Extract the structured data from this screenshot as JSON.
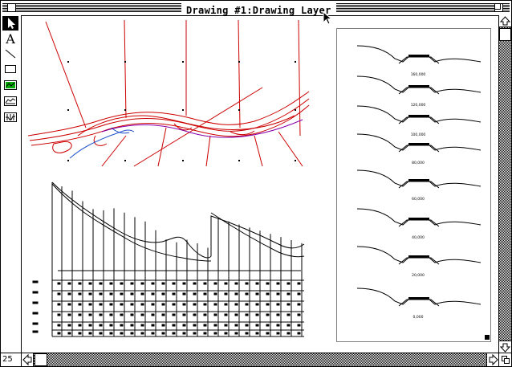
{
  "window": {
    "title": "Drawing #1:Drawing Layer"
  },
  "tools": [
    {
      "name": "pointer-tool",
      "icon": "arrow-pointer-icon",
      "selected": true
    },
    {
      "name": "text-tool",
      "icon": "letter-a-icon",
      "label": "A"
    },
    {
      "name": "line-tool",
      "icon": "diagonal-line-icon"
    },
    {
      "name": "rectangle-tool",
      "icon": "rectangle-icon"
    },
    {
      "name": "plan-tool",
      "icon": "plan-icon"
    },
    {
      "name": "profile-tool",
      "icon": "profile-icon"
    },
    {
      "name": "section-tool",
      "icon": "section-icon"
    }
  ],
  "drawing": {
    "section_stations": [
      "160,000",
      "120,000",
      "100,000",
      "80,000",
      "60,000",
      "40,000",
      "20,000",
      "0,000"
    ],
    "plan_color": "#cc0000",
    "plan_secondary_color": "#2255cc",
    "plan_accent_color": "#8800aa"
  },
  "status": {
    "zoom_value": "25"
  }
}
